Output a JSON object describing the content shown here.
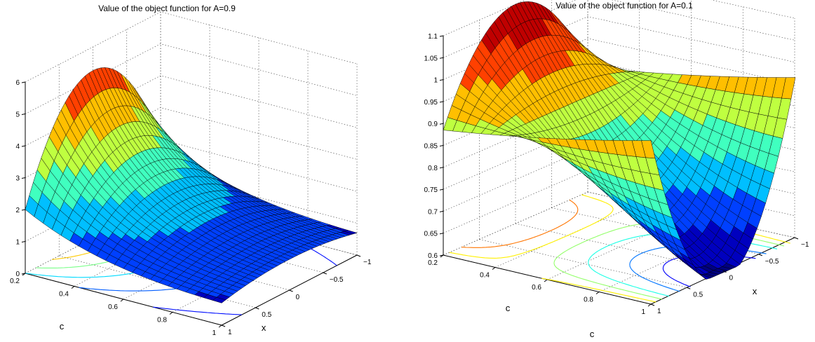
{
  "chart_data": [
    {
      "type": "surface",
      "title": "Value of the object function for A=0.9",
      "xlabel": "c",
      "ylabel": "x",
      "zlabel": "",
      "xlim": [
        0.2,
        1
      ],
      "ylim": [
        -1,
        1
      ],
      "zlim": [
        0,
        6.5
      ],
      "x_ticks": [
        "0.2",
        "0.4",
        "0.6",
        "0.8",
        "1"
      ],
      "y_ticks": [
        "1",
        "0.5",
        "0",
        "−0.5",
        "−1"
      ],
      "z_ticks": [
        "0",
        "1",
        "2",
        "3",
        "4",
        "5",
        "6"
      ],
      "grid": true,
      "colormap": "jet",
      "contours_on_floor": true,
      "surface_samples": {
        "c": [
          0.2,
          0.4,
          0.6,
          0.8,
          1.0
        ],
        "x": [
          -1,
          -0.5,
          0,
          0.5,
          1
        ],
        "z_at_x0": [
          5.6,
          2.8,
          1.9,
          1.4,
          1.1
        ]
      }
    },
    {
      "type": "surface",
      "title": "Value of the object function for A=0.1",
      "xlabel": "c",
      "ylabel": "x",
      "xlabel_bottom": "c",
      "zlabel": "",
      "xlim": [
        0.2,
        1
      ],
      "ylim": [
        -1,
        1
      ],
      "zlim": [
        0.6,
        1.1
      ],
      "x_ticks": [
        "0.2",
        "0.4",
        "0.6",
        "0.8",
        "1"
      ],
      "y_ticks": [
        "1",
        "0.5",
        "0",
        "−0.5",
        "−1"
      ],
      "z_ticks": [
        "0.6",
        "0.65",
        "0.7",
        "0.75",
        "0.8",
        "0.85",
        "0.9",
        "0.95",
        "1",
        "1.05",
        "1.1"
      ],
      "grid": true,
      "colormap": "jet",
      "contours_on_floor": true,
      "surface_samples": {
        "c": [
          0.2,
          0.4,
          0.6,
          0.8,
          1.0
        ],
        "x": [
          -1,
          -0.5,
          0,
          0.5,
          1
        ],
        "z_at_x0": [
          1.1,
          0.95,
          0.82,
          0.7,
          0.62
        ]
      }
    }
  ]
}
